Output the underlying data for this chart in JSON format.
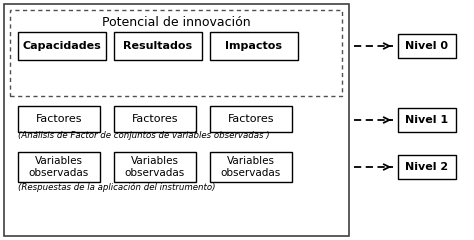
{
  "title": "Potencial de innovación",
  "row0_labels": [
    "Capacidades",
    "Resultados",
    "Impactos"
  ],
  "row0_bold": true,
  "row1_labels": [
    "Factores",
    "Factores",
    "Factores"
  ],
  "row1_note": "(Análisis de Factor de conjuntos de variables observadas )",
  "row2_labels": [
    "Variables\nobservadas",
    "Variables\nobservadas",
    "Variables\nobservadas"
  ],
  "row2_note": "(Respuestas de la aplicación del instrumento)",
  "nivel_labels": [
    "Nivel 0",
    "Nivel 1",
    "Nivel 2"
  ],
  "bg_color": "#ffffff",
  "box_facecolor": "#ffffff",
  "border_color": "#000000",
  "text_color": "#000000"
}
